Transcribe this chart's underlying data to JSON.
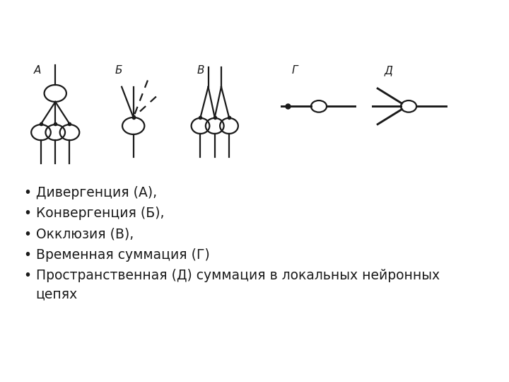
{
  "bg_color": "#ffffff",
  "line_color": "#1a1a1a",
  "label_A": "А",
  "label_B": "Б",
  "label_V": "В",
  "label_G": "Г",
  "label_D": "Д",
  "bullet_items": [
    "Дивергенция (А),",
    "Конвергенция (Б),",
    "Окклюзия (В),",
    "Временная суммация (Г)",
    "Пространственная (Д) суммация в локальных нейронных\nцепях"
  ],
  "fig_width": 7.2,
  "fig_height": 5.4,
  "dpi": 100
}
